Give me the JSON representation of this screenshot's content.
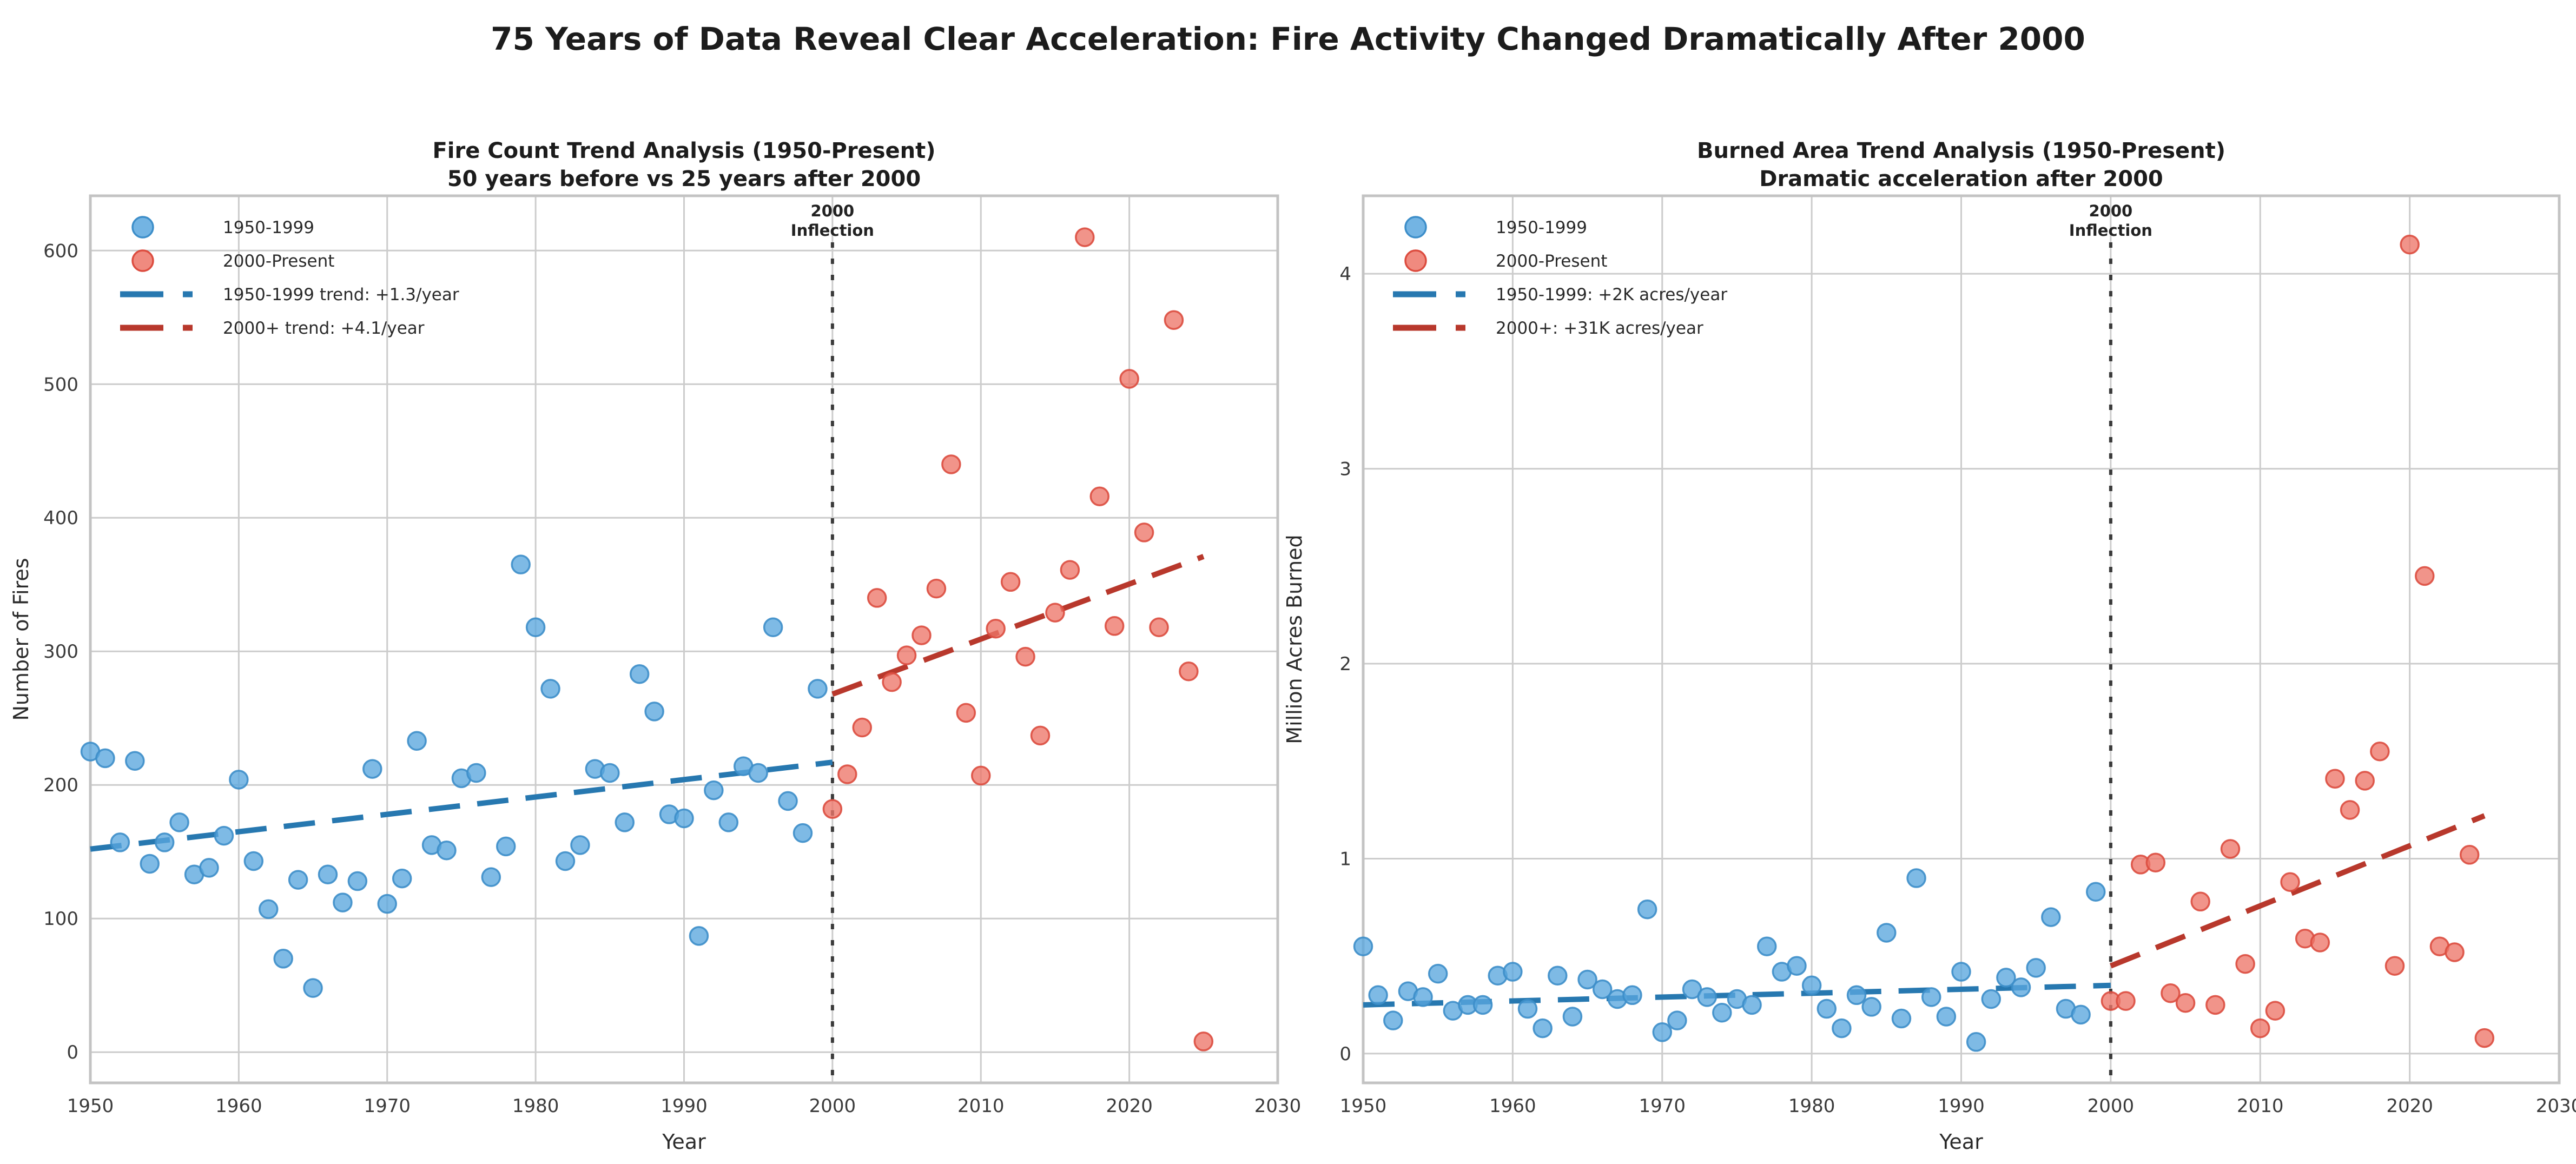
{
  "figure": {
    "title": "75 Years of Data Reveal Clear Acceleration: Fire Activity Changed Dramatically After 2000",
    "background": "#ffffff"
  },
  "colors": {
    "grid": "#cccccc",
    "spine": "#c3c3c3",
    "tick_text": "#3a3a3a",
    "title_text": "#1c1c1c",
    "blue_fill": "#5aa7de",
    "blue_edge": "#3d8ec9",
    "red_fill": "#ed7669",
    "red_edge": "#dc4c3f",
    "blue_trend": "#2778b0",
    "red_trend": "#b8382c",
    "vline": "#3a3a3a"
  },
  "chart_data": [
    {
      "type": "scatter",
      "title": "Fire Count Trend Analysis (1950-Present)",
      "subtitle": "50 years before vs 25 years after 2000",
      "xlabel": "Year",
      "ylabel": "Number of Fires",
      "xlim": [
        1950,
        2030
      ],
      "ylim": [
        -23,
        641
      ],
      "x_ticks": [
        1950,
        1960,
        1970,
        1980,
        1990,
        2000,
        2010,
        2020,
        2030
      ],
      "y_ticks": [
        0,
        100,
        200,
        300,
        400,
        500,
        600
      ],
      "grid": true,
      "legend_position": "upper-left",
      "legend": [
        {
          "type": "dot",
          "series": "blue",
          "label": "1950-1999"
        },
        {
          "type": "dot",
          "series": "red",
          "label": "2000-Present"
        },
        {
          "type": "dash",
          "series": "blue",
          "label": "1950-1999 trend: +1.3/year"
        },
        {
          "type": "dash",
          "series": "red",
          "label": "2000+ trend: +4.1/year"
        }
      ],
      "vline": {
        "x": 2000,
        "label_line1": "2000",
        "label_line2": "Inflection"
      },
      "series": [
        {
          "name": "1950-1999",
          "color_role": "blue",
          "x": [
            1950,
            1951,
            1952,
            1953,
            1954,
            1955,
            1956,
            1957,
            1958,
            1959,
            1960,
            1961,
            1962,
            1963,
            1964,
            1965,
            1966,
            1967,
            1968,
            1969,
            1970,
            1971,
            1972,
            1973,
            1974,
            1975,
            1976,
            1977,
            1978,
            1979,
            1980,
            1981,
            1982,
            1983,
            1984,
            1985,
            1986,
            1987,
            1988,
            1989,
            1990,
            1991,
            1992,
            1993,
            1994,
            1995,
            1996,
            1997,
            1998,
            1999
          ],
          "y": [
            225,
            220,
            157,
            218,
            141,
            157,
            172,
            133,
            138,
            162,
            204,
            143,
            107,
            70,
            129,
            48,
            133,
            112,
            128,
            212,
            111,
            130,
            233,
            155,
            151,
            205,
            209,
            131,
            154,
            365,
            318,
            272,
            143,
            155,
            212,
            209,
            172,
            283,
            255,
            178,
            175,
            87,
            196,
            172,
            214,
            209,
            318,
            188,
            164,
            272
          ]
        },
        {
          "name": "2000-Present",
          "color_role": "red",
          "x": [
            2000,
            2001,
            2002,
            2003,
            2004,
            2005,
            2006,
            2007,
            2008,
            2009,
            2010,
            2011,
            2012,
            2013,
            2014,
            2015,
            2016,
            2017,
            2018,
            2019,
            2020,
            2021,
            2022,
            2023,
            2024,
            2025
          ],
          "y": [
            182,
            208,
            243,
            340,
            277,
            297,
            312,
            347,
            440,
            254,
            207,
            317,
            352,
            296,
            237,
            329,
            361,
            610,
            416,
            319,
            504,
            389,
            318,
            548,
            285,
            8
          ]
        }
      ],
      "trends": [
        {
          "name": "1950-1999 trend: +1.3/year",
          "color_role": "blue",
          "x1": 1950,
          "y1": 152,
          "x2": 2000,
          "y2": 217
        },
        {
          "name": "2000+ trend: +4.1/year",
          "color_role": "red",
          "x1": 2000,
          "y1": 268,
          "x2": 2025,
          "y2": 371
        }
      ]
    },
    {
      "type": "scatter",
      "title": "Burned Area Trend Analysis (1950-Present)",
      "subtitle": "Dramatic acceleration after 2000",
      "xlabel": "Year",
      "ylabel": "Million Acres Burned",
      "xlim": [
        1950,
        2030
      ],
      "ylim": [
        -0.15,
        4.4
      ],
      "x_ticks": [
        1950,
        1960,
        1970,
        1980,
        1990,
        2000,
        2010,
        2020,
        2030
      ],
      "y_ticks": [
        0,
        1,
        2,
        3,
        4
      ],
      "grid": true,
      "legend_position": "upper-left",
      "legend": [
        {
          "type": "dot",
          "series": "blue",
          "label": "1950-1999"
        },
        {
          "type": "dot",
          "series": "red",
          "label": "2000-Present"
        },
        {
          "type": "dash",
          "series": "blue",
          "label": "1950-1999: +2K acres/year"
        },
        {
          "type": "dash",
          "series": "red",
          "label": "2000+: +31K acres/year"
        }
      ],
      "vline": {
        "x": 2000,
        "label_line1": "2000",
        "label_line2": "Inflection"
      },
      "series": [
        {
          "name": "1950-1999",
          "color_role": "blue",
          "x": [
            1950,
            1951,
            1952,
            1953,
            1954,
            1955,
            1956,
            1957,
            1958,
            1959,
            1960,
            1961,
            1962,
            1963,
            1964,
            1965,
            1966,
            1967,
            1968,
            1969,
            1970,
            1971,
            1972,
            1973,
            1974,
            1975,
            1976,
            1977,
            1978,
            1979,
            1980,
            1981,
            1982,
            1983,
            1984,
            1985,
            1986,
            1987,
            1988,
            1989,
            1990,
            1991,
            1992,
            1993,
            1994,
            1995,
            1996,
            1997,
            1998,
            1999
          ],
          "y": [
            0.55,
            0.3,
            0.17,
            0.32,
            0.29,
            0.41,
            0.22,
            0.25,
            0.25,
            0.4,
            0.42,
            0.23,
            0.13,
            0.4,
            0.19,
            0.38,
            0.33,
            0.28,
            0.3,
            0.74,
            0.11,
            0.17,
            0.33,
            0.29,
            0.21,
            0.28,
            0.25,
            0.55,
            0.42,
            0.45,
            0.35,
            0.23,
            0.13,
            0.3,
            0.24,
            0.62,
            0.18,
            0.9,
            0.29,
            0.19,
            0.42,
            0.06,
            0.28,
            0.39,
            0.34,
            0.44,
            0.7,
            0.23,
            0.2,
            0.83
          ]
        },
        {
          "name": "2000-Present",
          "color_role": "red",
          "x": [
            2000,
            2001,
            2002,
            2003,
            2004,
            2005,
            2006,
            2007,
            2008,
            2009,
            2010,
            2011,
            2012,
            2013,
            2014,
            2015,
            2016,
            2017,
            2018,
            2019,
            2020,
            2021,
            2022,
            2023,
            2024,
            2025
          ],
          "y": [
            0.27,
            0.27,
            0.97,
            0.98,
            0.31,
            0.26,
            0.78,
            0.25,
            1.05,
            0.46,
            0.13,
            0.22,
            0.88,
            0.59,
            0.57,
            1.41,
            1.25,
            1.4,
            1.55,
            0.45,
            4.15,
            2.45,
            0.55,
            0.52,
            1.02,
            0.08
          ]
        }
      ],
      "trends": [
        {
          "name": "1950-1999: +2K acres/year",
          "color_role": "blue",
          "x1": 1950,
          "y1": 0.25,
          "x2": 2000,
          "y2": 0.35
        },
        {
          "name": "2000+: +31K acres/year",
          "color_role": "red",
          "x1": 2000,
          "y1": 0.45,
          "x2": 2025,
          "y2": 1.22
        }
      ]
    }
  ]
}
